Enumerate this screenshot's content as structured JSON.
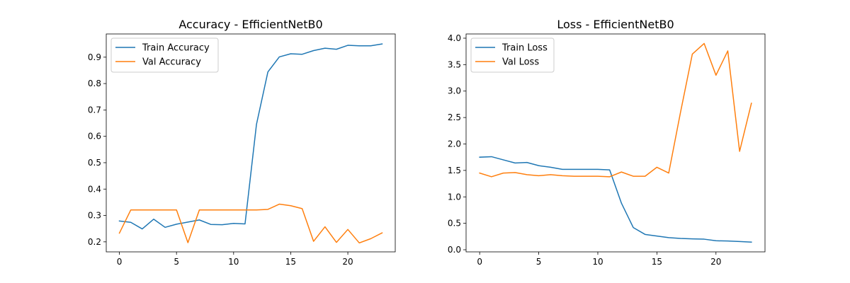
{
  "chart_data": [
    {
      "type": "line",
      "title": "Accuracy - EfficientNetB0",
      "xlabel": "",
      "ylabel": "",
      "xlim": [
        -1.15,
        24.15
      ],
      "ylim": [
        0.162,
        0.988
      ],
      "xticks": [
        0,
        5,
        10,
        15,
        20
      ],
      "yticks": [
        0.2,
        0.3,
        0.4,
        0.5,
        0.6,
        0.7,
        0.8,
        0.9
      ],
      "x": [
        0,
        1,
        2,
        3,
        4,
        5,
        6,
        7,
        8,
        9,
        10,
        11,
        12,
        13,
        14,
        15,
        16,
        17,
        18,
        19,
        20,
        21,
        22,
        23
      ],
      "series": [
        {
          "name": "Train Accuracy",
          "color": "#1f77b4",
          "values": [
            0.279,
            0.274,
            0.249,
            0.286,
            0.255,
            0.267,
            0.275,
            0.283,
            0.266,
            0.265,
            0.27,
            0.268,
            0.645,
            0.844,
            0.901,
            0.913,
            0.911,
            0.925,
            0.934,
            0.93,
            0.945,
            0.943,
            0.943,
            0.95
          ]
        },
        {
          "name": "Val Accuracy",
          "color": "#ff7f0e",
          "values": [
            0.233,
            0.321,
            0.321,
            0.321,
            0.321,
            0.321,
            0.197,
            0.321,
            0.321,
            0.321,
            0.321,
            0.321,
            0.321,
            0.323,
            0.343,
            0.337,
            0.326,
            0.202,
            0.257,
            0.198,
            0.247,
            0.196,
            0.212,
            0.234
          ]
        }
      ],
      "legend": "top-left",
      "grid": false
    },
    {
      "type": "line",
      "title": "Loss - EfficientNetB0",
      "xlabel": "",
      "ylabel": "",
      "xlim": [
        -1.15,
        24.15
      ],
      "ylim": [
        -0.04,
        4.08
      ],
      "xticks": [
        0,
        5,
        10,
        15,
        20
      ],
      "yticks": [
        0.0,
        0.5,
        1.0,
        1.5,
        2.0,
        2.5,
        3.0,
        3.5,
        4.0
      ],
      "x": [
        0,
        1,
        2,
        3,
        4,
        5,
        6,
        7,
        8,
        9,
        10,
        11,
        12,
        13,
        14,
        15,
        16,
        17,
        18,
        19,
        20,
        21,
        22,
        23
      ],
      "series": [
        {
          "name": "Train Loss",
          "color": "#1f77b4",
          "values": [
            1.75,
            1.76,
            1.7,
            1.64,
            1.65,
            1.59,
            1.56,
            1.52,
            1.52,
            1.52,
            1.52,
            1.51,
            0.88,
            0.42,
            0.29,
            0.26,
            0.23,
            0.215,
            0.205,
            0.2,
            0.17,
            0.165,
            0.155,
            0.145
          ]
        },
        {
          "name": "Val Loss",
          "color": "#ff7f0e",
          "values": [
            1.45,
            1.38,
            1.45,
            1.46,
            1.42,
            1.4,
            1.42,
            1.4,
            1.39,
            1.39,
            1.39,
            1.38,
            1.47,
            1.39,
            1.39,
            1.56,
            1.45,
            2.6,
            3.7,
            3.9,
            3.3,
            3.76,
            1.86,
            2.77
          ]
        }
      ],
      "legend": "top-left",
      "grid": false
    }
  ]
}
